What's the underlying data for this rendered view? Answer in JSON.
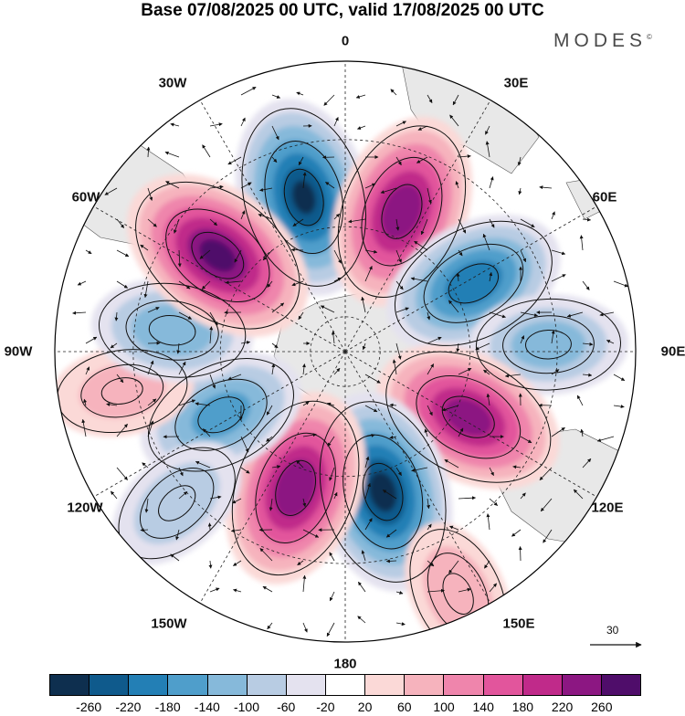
{
  "title": "Base 07/08/2025 00 UTC, valid 17/08/2025 00 UTC",
  "brand": {
    "name": "MODES",
    "mark": "©"
  },
  "longitude_labels": [
    "0",
    "30E",
    "60E",
    "90E",
    "120E",
    "150E",
    "180",
    "150W",
    "120W",
    "90W",
    "60W",
    "30W"
  ],
  "reference_vector": {
    "value": "30"
  },
  "colorbar": {
    "ticks": [
      "-260",
      "-220",
      "-180",
      "-140",
      "-100",
      "-60",
      "-20",
      "20",
      "60",
      "100",
      "140",
      "180",
      "220",
      "260"
    ],
    "colors": [
      "#0e2f4f",
      "#0f5a8c",
      "#237fb5",
      "#4f9ecb",
      "#86b9da",
      "#b8cce3",
      "#e4e2ef",
      "#ffffff",
      "#fbd9d7",
      "#f6b3bd",
      "#ef85ac",
      "#e2559c",
      "#c02a8a",
      "#8c1782",
      "#4f0d6a"
    ]
  },
  "anomaly_centers": [
    {
      "sign": "negative",
      "value": -250,
      "bearing": 345,
      "radius": 0.55
    },
    {
      "sign": "positive",
      "value": 240,
      "bearing": 22,
      "radius": 0.52
    },
    {
      "sign": "negative",
      "value": -200,
      "bearing": 62,
      "radius": 0.5
    },
    {
      "sign": "negative",
      "value": -110,
      "bearing": 88,
      "radius": 0.7
    },
    {
      "sign": "positive",
      "value": 230,
      "bearing": 118,
      "radius": 0.48
    },
    {
      "sign": "negative",
      "value": -260,
      "bearing": 165,
      "radius": 0.5
    },
    {
      "sign": "positive",
      "value": 245,
      "bearing": 200,
      "radius": 0.5
    },
    {
      "sign": "negative",
      "value": -150,
      "bearing": 243,
      "radius": 0.48
    },
    {
      "sign": "positive",
      "value": 60,
      "bearing": 260,
      "radius": 0.78
    },
    {
      "sign": "negative",
      "value": -120,
      "bearing": 277,
      "radius": 0.6
    },
    {
      "sign": "positive",
      "value": 260,
      "bearing": 307,
      "radius": 0.55
    },
    {
      "sign": "negative",
      "value": -80,
      "bearing": 228,
      "radius": 0.78
    },
    {
      "sign": "positive",
      "value": 80,
      "bearing": 155,
      "radius": 0.92
    }
  ]
}
